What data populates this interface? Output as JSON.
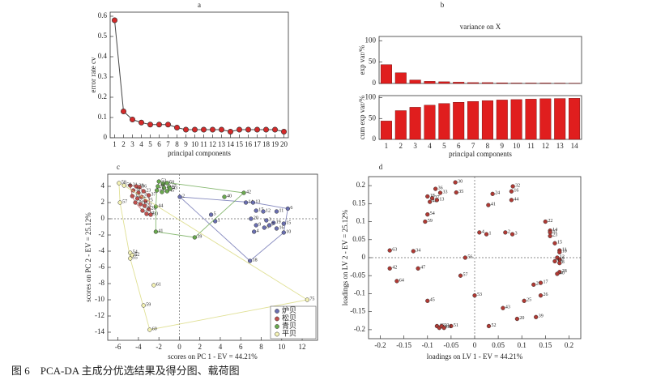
{
  "caption": "图 6　PCA-DA 主成分优选结果及得分图、载荷图",
  "chart_data": [
    {
      "type": "line",
      "panel": "a",
      "ylabel": "error rate cv",
      "xlabel": "principal components",
      "color": "#d42a2a",
      "line_color": "#444444",
      "x": [
        1,
        2,
        3,
        4,
        5,
        6,
        7,
        8,
        9,
        10,
        11,
        12,
        13,
        14,
        15,
        16,
        17,
        18,
        19,
        20
      ],
      "values": [
        0.58,
        0.13,
        0.09,
        0.075,
        0.065,
        0.065,
        0.065,
        0.05,
        0.04,
        0.04,
        0.04,
        0.04,
        0.04,
        0.03,
        0.04,
        0.04,
        0.04,
        0.04,
        0.04,
        0.03
      ],
      "xlim": [
        0.5,
        20.5
      ],
      "xticks": [
        1,
        2,
        3,
        4,
        5,
        6,
        7,
        8,
        9,
        10,
        11,
        12,
        13,
        14,
        15,
        16,
        17,
        18,
        19,
        20
      ],
      "ylim": [
        0,
        0.62
      ],
      "yticks": [
        0,
        0.1,
        0.2,
        0.3,
        0.4,
        0.5,
        0.6
      ]
    },
    {
      "type": "bar",
      "panel": "b",
      "title": "variance on X",
      "ylabel": "exp var/%",
      "color": "#e01e1e",
      "categories": [
        "1",
        "2",
        "3",
        "4",
        "5",
        "6",
        "7",
        "8",
        "9",
        "10",
        "11",
        "12",
        "13",
        "14"
      ],
      "values": [
        44,
        25,
        8,
        5,
        4,
        3,
        2,
        2,
        1.5,
        1,
        1,
        1,
        0.8,
        0.6
      ],
      "ylim": [
        0,
        110
      ],
      "yticks": [
        0,
        50,
        100
      ]
    },
    {
      "type": "bar",
      "ylabel": "cum exp var/%",
      "xlabel": "principal components",
      "color": "#e01e1e",
      "categories": [
        "1",
        "2",
        "3",
        "4",
        "5",
        "6",
        "7",
        "8",
        "9",
        "10",
        "11",
        "12",
        "13",
        "14"
      ],
      "values": [
        44,
        69,
        77,
        82,
        86,
        89,
        91,
        93,
        94.5,
        95.5,
        96.5,
        97.5,
        98,
        98.5
      ],
      "ylim": [
        0,
        105
      ],
      "yticks": [
        0,
        50,
        100
      ]
    },
    {
      "type": "scatter",
      "panel": "c",
      "xlabel": "scores on PC 1 - EV = 44.21%",
      "ylabel": "scores on PC 2 - EV = 25.12%",
      "xlim": [
        -7,
        13.5
      ],
      "xticks": [
        -6,
        -4,
        -2,
        0,
        2,
        4,
        6,
        8,
        10,
        12
      ],
      "ylim": [
        -15,
        5.5
      ],
      "yticks": [
        -14,
        -12,
        -10,
        -8,
        -6,
        -4,
        -2,
        0,
        2,
        4
      ],
      "zero_lines": true,
      "hull": true,
      "legend": "lower right",
      "series": [
        {
          "name": "炉贝",
          "color": "#6a6fb0",
          "x": [
            0.05,
            3.1,
            3.5,
            6.5,
            7.2,
            7.5,
            8.2,
            9.5,
            10.6,
            7.0,
            8.5,
            9.2,
            10.2,
            7.3,
            8.3,
            9.5,
            10.2,
            6.9,
            7.5,
            8.8
          ],
          "y": [
            2.7,
            0.5,
            -0.3,
            2.0,
            2.0,
            1.0,
            0.9,
            0.9,
            1.25,
            0.0,
            -0.2,
            -0.5,
            -0.6,
            -1.6,
            -1.1,
            -1.2,
            -1.7,
            -5.2,
            -0.8,
            -0.8
          ],
          "labels": [
            "2",
            "5",
            "1",
            "14",
            "13",
            "17",
            "12",
            "11",
            "6",
            "20",
            "3",
            "19",
            "15",
            "4",
            "8",
            "16",
            "10",
            "18",
            "9",
            "7"
          ]
        },
        {
          "name": "松贝",
          "color": "#c0504d",
          "x": [
            -4.8,
            -4.2,
            -3.9,
            -4.5,
            -4.0,
            -3.5,
            -4.6,
            -4.1,
            -3.7,
            -3.3,
            -4.3,
            -3.8,
            -3.4,
            -3.0,
            -3.6,
            -3.2,
            -2.8,
            -3.0
          ],
          "y": [
            4.1,
            4.0,
            3.9,
            3.5,
            3.2,
            3.4,
            2.8,
            2.5,
            2.7,
            2.2,
            2.0,
            1.8,
            1.6,
            1.2,
            1.0,
            0.6,
            0.5,
            2.9
          ],
          "labels": [
            "31",
            "38",
            "36",
            "32",
            "34",
            "23",
            "33",
            "26",
            "21",
            "25",
            "29",
            "35",
            "22",
            "28",
            "27",
            "24",
            "30",
            "37"
          ]
        },
        {
          "name": "青贝",
          "color": "#6aa84f",
          "x": [
            -2.0,
            -1.6,
            -1.2,
            -2.1,
            -1.5,
            -1.0,
            -2.2,
            -1.7,
            -1.2,
            -2.3,
            -2.3,
            1.5,
            4.4,
            6.3,
            -0.9
          ],
          "y": [
            4.6,
            4.3,
            4.4,
            4.0,
            3.8,
            3.9,
            3.5,
            3.3,
            3.4,
            1.5,
            -1.6,
            -2.3,
            2.7,
            3.2,
            3.7
          ],
          "labels": [
            "53",
            "52",
            "50",
            "49",
            "48",
            "47",
            "51",
            "46",
            "45",
            "44",
            "41",
            "39",
            "40",
            "42",
            "43"
          ]
        },
        {
          "name": "平贝",
          "color": "#f4f2b4",
          "x": [
            -5.9,
            -5.4,
            -5.8,
            -4.8,
            -4.6,
            -4.8,
            -2.5,
            -3.5,
            -2.9,
            12.5
          ],
          "y": [
            4.4,
            4.1,
            2.0,
            -4.2,
            -4.5,
            -4.9,
            -8.2,
            -10.7,
            -13.7,
            -10.0
          ],
          "labels": [
            "58",
            "56",
            "57",
            "54",
            "62",
            "55",
            "61",
            "59",
            "60",
            "75"
          ]
        }
      ]
    },
    {
      "type": "scatter",
      "panel": "d",
      "xlabel": "loadings on LV 1 - EV = 44.21%",
      "ylabel": "loadings on LV 2 - EV = 25.12%",
      "xlim": [
        -0.225,
        0.225
      ],
      "xticks": [
        -0.2,
        -0.15,
        -0.1,
        -0.05,
        0,
        0.05,
        0.1,
        0.15,
        0.2
      ],
      "ylim": [
        -0.225,
        0.225
      ],
      "yticks": [
        -0.2,
        -0.15,
        -0.1,
        -0.05,
        0,
        0.05,
        0.1,
        0.15,
        0.2
      ],
      "zero_lines": true,
      "series": [
        {
          "color": "#b03a34",
          "x": [
            -0.041,
            -0.083,
            -0.073,
            -0.039,
            0.081,
            0.038,
            0.078,
            0.078,
            0.029,
            -0.1,
            -0.09,
            -0.095,
            -0.08,
            -0.1,
            -0.105,
            -0.18,
            -0.13,
            -0.18,
            -0.165,
            -0.12,
            -0.02,
            -0.03,
            0.0,
            -0.1,
            -0.05,
            0.03,
            -0.08,
            -0.075,
            -0.07,
            -0.065,
            0.09,
            0.13,
            0.06,
            0.105,
            0.14,
            0.125,
            0.14,
            0.15,
            0.16,
            0.16,
            0.16,
            0.17,
            0.18,
            0.18,
            0.175,
            0.18,
            0.17,
            0.18,
            0.18,
            0.175,
            0.01,
            0.025,
            0.065,
            0.08
          ],
          "y": [
            0.209,
            0.191,
            0.18,
            0.181,
            0.198,
            0.177,
            0.184,
            0.16,
            0.146,
            0.17,
            0.165,
            0.155,
            0.16,
            0.12,
            0.1,
            0.02,
            0.018,
            -0.03,
            -0.065,
            -0.03,
            0.0,
            -0.05,
            -0.105,
            -0.12,
            -0.19,
            -0.19,
            -0.19,
            -0.195,
            -0.19,
            -0.195,
            -0.17,
            -0.165,
            -0.14,
            -0.12,
            -0.105,
            -0.075,
            -0.07,
            0.1,
            0.075,
            0.07,
            0.06,
            0.04,
            0.02,
            0.015,
            0.0,
            -0.005,
            -0.01,
            -0.015,
            -0.04,
            -0.045,
            0.07,
            0.065,
            0.07,
            0.065
          ],
          "labels": [
            "30",
            "36",
            "33",
            "35",
            "32",
            "24",
            "16",
            "44",
            "41",
            "18",
            "37",
            "48",
            "13",
            "54",
            "59",
            "63",
            "34",
            "42",
            "64",
            "47",
            "56",
            "57",
            "53",
            "45",
            "51",
            "52",
            "46",
            "49",
            "50",
            "60",
            "20",
            "39",
            "43",
            "25",
            "26",
            "27",
            "17",
            "22",
            "14",
            "31",
            "23",
            "15",
            "11",
            "10",
            "12",
            "9",
            "19",
            "8",
            "28",
            "40",
            "4",
            "1",
            "2",
            "3"
          ]
        }
      ]
    }
  ]
}
